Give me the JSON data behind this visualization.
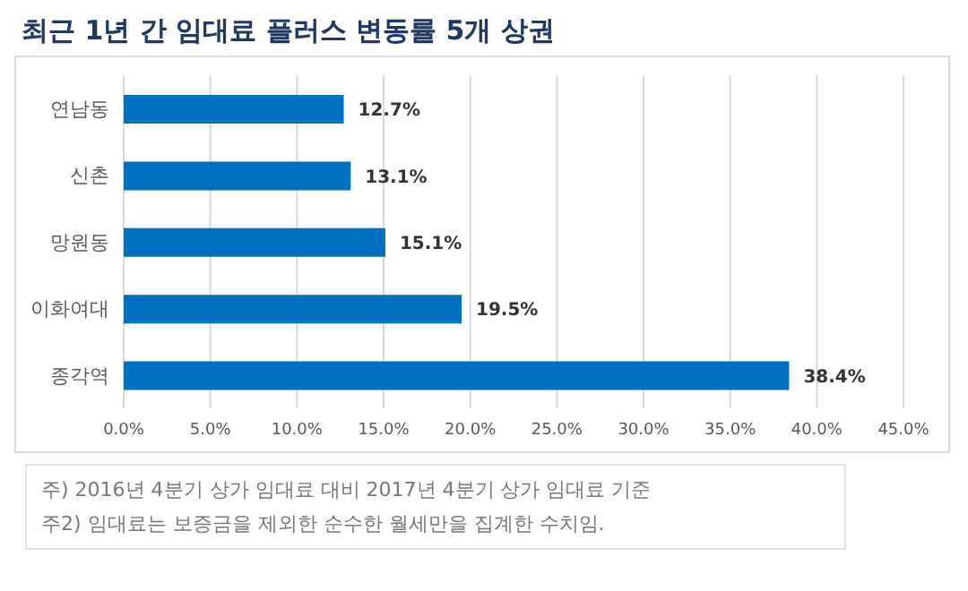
{
  "chart_data": {
    "type": "bar",
    "orientation": "horizontal",
    "title": "최근 1년 간 임대료 플러스 변동률 5개 상권",
    "categories": [
      "연남동",
      "신촌",
      "망원동",
      "이화여대",
      "종각역"
    ],
    "values": [
      12.7,
      13.1,
      15.1,
      19.5,
      38.4
    ],
    "value_labels": [
      "12.7%",
      "13.1%",
      "15.1%",
      "19.5%",
      "38.4%"
    ],
    "color": "#0070c0",
    "xlim": [
      0,
      45
    ],
    "xticks": [
      {
        "value": 0,
        "label": "0.0%"
      },
      {
        "value": 5,
        "label": "5.0%"
      },
      {
        "value": 10,
        "label": "10.0%"
      },
      {
        "value": 15,
        "label": "15.0%"
      },
      {
        "value": 20,
        "label": "20.0%"
      },
      {
        "value": 25,
        "label": "25.0%"
      },
      {
        "value": 30,
        "label": "30.0%"
      },
      {
        "value": 35,
        "label": "35.0%"
      },
      {
        "value": 40,
        "label": "40.0%"
      },
      {
        "value": 45,
        "label": "45.0%"
      }
    ],
    "grid": "x",
    "annotations": [
      "주) 2016년 4분기 상가 임대료 대비 2017년 4분기 상가 임대료 기준",
      "주2) 임대료는 보증금을 제외한 순수한 월세만을 집계한 수치임."
    ]
  }
}
